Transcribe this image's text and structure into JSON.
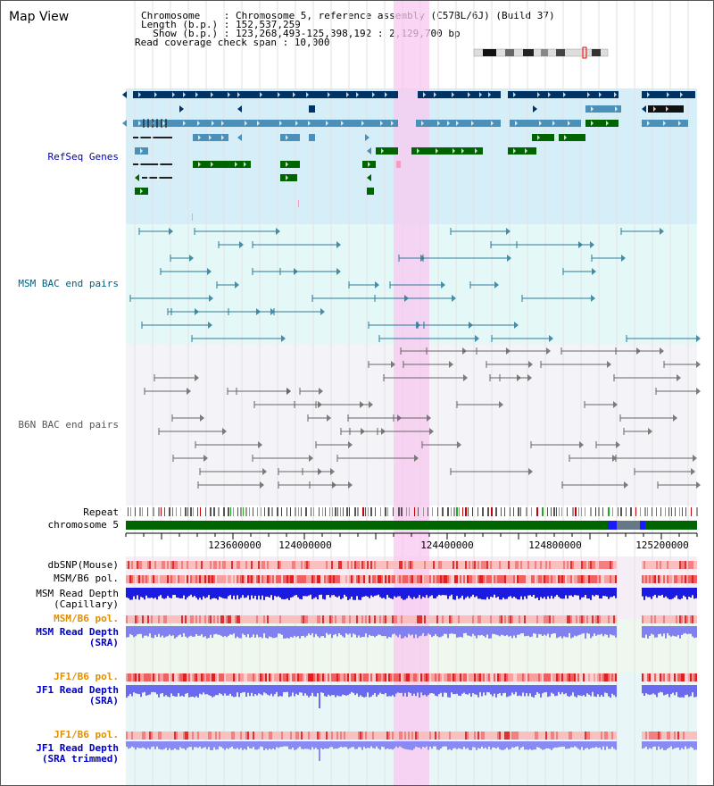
{
  "title": "Map View",
  "header": {
    "chromosome_line": "Chromosome    : Chromosome 5, reference assembly (C57BL/6J) (Build 37)",
    "length_line": "Length (b.p.) : 152,537,259",
    "show_line": "  Show (b.p.) : 123,268,493-125,398,192 : 2,129,700 bp",
    "coverage_line": "Read coverage check span : 10,000"
  },
  "tracks": {
    "refseq": "RefSeq Genes",
    "msm_bac": "MSM BAC end pairs",
    "b6n_bac": "B6N BAC end pairs",
    "repeat": "Repeat",
    "chromosome": "chromosome 5",
    "dbsnp": "dbSNP(Mouse)",
    "msm_b6_pol_1": "MSM/B6 pol.",
    "msm_depth_cap_1": "MSM Read Depth",
    "msm_depth_cap_2": "(Capillary)",
    "msm_b6_pol_2": "MSM/B6 pol.",
    "msm_depth_sra_1": "MSM Read Depth",
    "msm_depth_sra_2": "(SRA)",
    "jf1_b6_pol_1": "JF1/B6 pol.",
    "jf1_depth_sra_1": "JF1 Read Depth",
    "jf1_depth_sra_2": "(SRA)",
    "jf1_b6_pol_2": "JF1/B6 pol.",
    "jf1_depth_trim_1": "JF1 Read Depth",
    "jf1_depth_trim_2": "(SRA trimmed)"
  },
  "ruler_ticks": [
    "123600000",
    "124000000",
    "124400000",
    "124800000",
    "125200000"
  ],
  "colors": {
    "refseq_label": "#0000b0",
    "msm_bac_label": "#006080",
    "b6n_bac_label": "#555555",
    "pol_orange": "#e09000",
    "depth_blue": "#0000c0",
    "highlight": "#f8c8f0",
    "gene_dark": "#003366",
    "gene_mid": "#4a90b8",
    "gene_green": "#006400"
  }
}
